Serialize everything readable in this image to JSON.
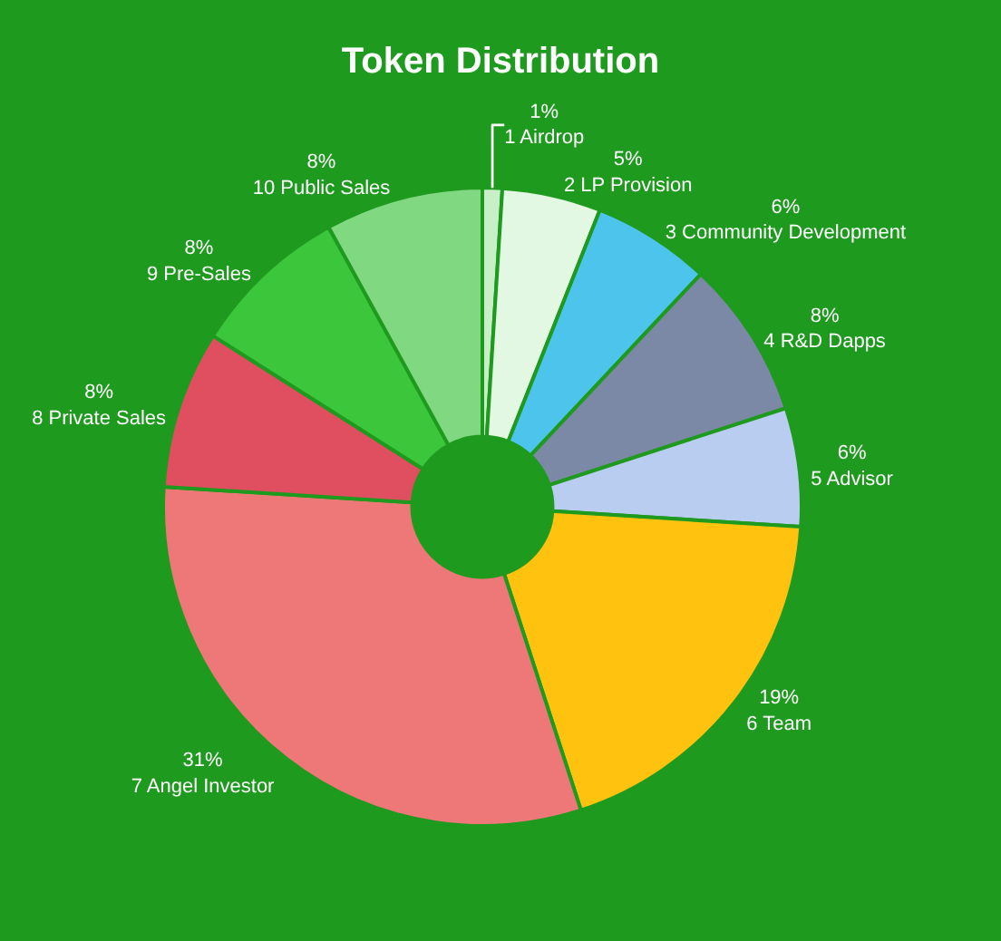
{
  "chart_data": {
    "type": "donut",
    "title": "Token Distribution",
    "categories": [
      "1 Airdrop",
      "2 LP Provision",
      "3 Community Development",
      "4 R&D Dapps",
      "5 Advisor",
      "6 Team",
      "7 Angel Investor",
      "8 Private Sales",
      "9 Pre-Sales",
      "10 Public Sales"
    ],
    "values": [
      1,
      5,
      6,
      8,
      6,
      19,
      31,
      8,
      8,
      8
    ],
    "value_labels": [
      "1%",
      "5%",
      "6%",
      "8%",
      "6%",
      "19%",
      "31%",
      "8%",
      "8%",
      "8%"
    ],
    "colors": [
      "#c8efc8",
      "#e3f8e3",
      "#4cc4ec",
      "#7b88a6",
      "#b9cdf0",
      "#ffc20e",
      "#ee7878",
      "#e04f5f",
      "#3cc63c",
      "#80d880"
    ],
    "legend": false
  }
}
